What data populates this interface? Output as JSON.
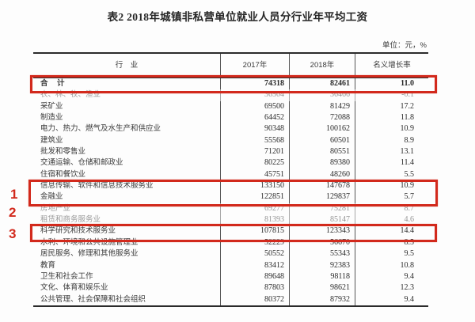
{
  "title": "表2 2018年城镇非私营单位就业人员分行业年平均工资",
  "unit_note": "单位：元，%",
  "table": {
    "columns": [
      "行　业",
      "2017年",
      "2018年",
      "名义增长率"
    ],
    "rows": [
      {
        "industry": "合　计",
        "y2017": "74318",
        "y2018": "82461",
        "growth": "11.0",
        "bold": true
      },
      {
        "industry": "农、林、牧、渔业",
        "y2017": "36504",
        "y2018": "36466",
        "growth": "-0.1",
        "dim": true
      },
      {
        "industry": "采矿业",
        "y2017": "69500",
        "y2018": "81429",
        "growth": "17.2"
      },
      {
        "industry": "制造业",
        "y2017": "64452",
        "y2018": "72088",
        "growth": "11.8"
      },
      {
        "industry": "电力、热力、燃气及水生产和供应业",
        "y2017": "90348",
        "y2018": "100162",
        "growth": "10.9"
      },
      {
        "industry": "建筑业",
        "y2017": "55568",
        "y2018": "60501",
        "growth": "8.9"
      },
      {
        "industry": "批发和零售业",
        "y2017": "71201",
        "y2018": "80551",
        "growth": "13.1"
      },
      {
        "industry": "交通运输、仓储和邮政业",
        "y2017": "80225",
        "y2018": "89380",
        "growth": "11.4"
      },
      {
        "industry": "住宿和餐饮业",
        "y2017": "45751",
        "y2018": "48260",
        "growth": "5.5"
      },
      {
        "industry": "信息传输、软件和信息技术服务业",
        "y2017": "133150",
        "y2018": "147678",
        "growth": "10.9"
      },
      {
        "industry": "金融业",
        "y2017": "122851",
        "y2018": "129837",
        "growth": "5.7"
      },
      {
        "industry": "房地产业",
        "y2017": "69277",
        "y2018": "75281",
        "growth": "8.7",
        "dim": true
      },
      {
        "industry": "租赁和商务服务业",
        "y2017": "81393",
        "y2018": "85147",
        "growth": "4.6",
        "dim": true
      },
      {
        "industry": "科学研究和技术服务业",
        "y2017": "107815",
        "y2018": "123343",
        "growth": "14.4"
      },
      {
        "industry": "水利、环境和公共设施管理业",
        "y2017": "52229",
        "y2018": "56670",
        "growth": "8.5"
      },
      {
        "industry": "居民服务、修理和其他服务业",
        "y2017": "50552",
        "y2018": "55343",
        "growth": "9.5"
      },
      {
        "industry": "教育",
        "y2017": "83412",
        "y2018": "92383",
        "growth": "10.8"
      },
      {
        "industry": "卫生和社会工作",
        "y2017": "89648",
        "y2018": "98118",
        "growth": "9.4"
      },
      {
        "industry": "文化、体育和娱乐业",
        "y2017": "87803",
        "y2018": "98621",
        "growth": "12.3"
      },
      {
        "industry": "公共管理、社会保障和社会组织",
        "y2017": "80372",
        "y2018": "87932",
        "growth": "9.4"
      }
    ]
  },
  "annotations": {
    "highlight_color": "#d2291c",
    "markers": [
      {
        "label": "1"
      },
      {
        "label": "2"
      },
      {
        "label": "3"
      }
    ]
  }
}
